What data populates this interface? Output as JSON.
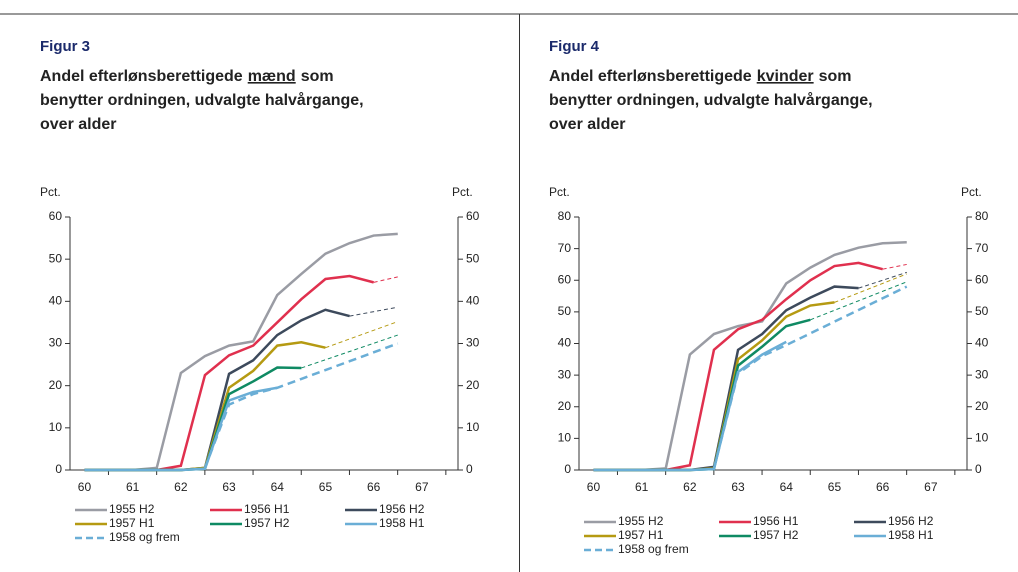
{
  "chart_data": [
    {
      "type": "line",
      "label": "Figur 3",
      "title_lines": [
        [
          "Andel efterlønsberettigede",
          "mænd",
          "som"
        ],
        [
          "benytter ordningen, udvalgte halvårgange,"
        ],
        [
          "over alder"
        ]
      ],
      "title_underline": [
        0,
        1
      ],
      "ylabel": "Pct.",
      "y2label": "Pct.",
      "xlim": [
        59.7,
        67.75
      ],
      "xticks": [
        60,
        61,
        62,
        63,
        64,
        65,
        66,
        67
      ],
      "ylim": [
        0,
        60
      ],
      "yticks": [
        0,
        10,
        20,
        30,
        40,
        50,
        60
      ],
      "y2lim": [
        0,
        60
      ],
      "y2ticks": [
        0,
        10,
        20,
        30,
        40,
        50,
        60
      ],
      "x": [
        60,
        60.5,
        61,
        61.5,
        62,
        62.5,
        63,
        63.5,
        64,
        64.5,
        65,
        65.5,
        66,
        66.5
      ],
      "series": [
        {
          "name": "1955 H2",
          "color": "#9a9ca4",
          "values": [
            0,
            0,
            0,
            0.5,
            23,
            27,
            29.5,
            30.5,
            41.5,
            46.5,
            51.3,
            53.8,
            55.6,
            56
          ]
        },
        {
          "name": "1956 H1",
          "color": "#e0304e",
          "values": [
            0,
            0,
            0,
            0,
            1,
            22.5,
            27.2,
            29.5,
            35,
            40.5,
            45.3,
            46,
            44.5,
            null
          ],
          "dashed_x": [
            66,
            66.5
          ],
          "dashed_values": [
            44.5,
            45.8
          ]
        },
        {
          "name": "1956 H2",
          "color": "#3d4a5c",
          "values": [
            0,
            0,
            0,
            0,
            0,
            0.5,
            22.8,
            26,
            32,
            35.5,
            38,
            36.5,
            null,
            null
          ],
          "dashed_x": [
            65.5,
            66.5
          ],
          "dashed_values": [
            36.5,
            38.6
          ]
        },
        {
          "name": "1957 H1",
          "color": "#b59a12",
          "values": [
            0,
            0,
            0,
            0,
            0,
            0.5,
            19.5,
            23.5,
            29.5,
            30.3,
            29,
            null,
            null,
            null
          ],
          "dashed_x": [
            65,
            66.5
          ],
          "dashed_values": [
            29,
            35.2
          ]
        },
        {
          "name": "1957 H2",
          "color": "#0f8a63",
          "values": [
            0,
            0,
            0,
            0,
            0,
            0.3,
            18,
            21,
            24.3,
            24.2,
            null,
            null,
            null,
            null
          ],
          "dashed_x": [
            64.5,
            66.5
          ],
          "dashed_values": [
            24.2,
            32
          ]
        },
        {
          "name": "1958 H1",
          "color": "#6aaed6",
          "values": [
            0,
            0,
            0,
            0,
            0,
            0.3,
            16.5,
            18.5,
            19.5,
            null,
            null,
            null,
            null,
            null
          ]
        },
        {
          "name": "1958 og frem",
          "color": "#6aaed6",
          "style": "dashed",
          "x": [
            62.5,
            63,
            63.5,
            64,
            64.5,
            65,
            65.5,
            66,
            66.5
          ],
          "values": [
            0.5,
            15.5,
            18,
            19.5,
            21.6,
            23.7,
            25.8,
            27.9,
            30
          ]
        }
      ]
    },
    {
      "type": "line",
      "label": "Figur 4",
      "title_lines": [
        [
          "Andel efterlønsberettigede",
          "kvinder",
          "som"
        ],
        [
          "benytter ordningen, udvalgte halvårgange,"
        ],
        [
          "over alder"
        ]
      ],
      "title_underline": [
        0,
        1
      ],
      "ylabel": "Pct.",
      "y2label": "Pct.",
      "xlim": [
        59.7,
        67.75
      ],
      "xticks": [
        60,
        61,
        62,
        63,
        64,
        65,
        66,
        67
      ],
      "ylim": [
        0,
        80
      ],
      "yticks": [
        0,
        10,
        20,
        30,
        40,
        50,
        60,
        70,
        80
      ],
      "y2lim": [
        0,
        80
      ],
      "y2ticks": [
        0,
        10,
        20,
        30,
        40,
        50,
        60,
        70,
        80
      ],
      "x": [
        60,
        60.5,
        61,
        61.5,
        62,
        62.5,
        63,
        63.5,
        64,
        64.5,
        65,
        65.5,
        66,
        66.5
      ],
      "series": [
        {
          "name": "1955 H2",
          "color": "#9a9ca4",
          "values": [
            0,
            0,
            0,
            0.5,
            36.5,
            43,
            45.5,
            47,
            59,
            64,
            68,
            70.3,
            71.7,
            72
          ]
        },
        {
          "name": "1956 H1",
          "color": "#e0304e",
          "values": [
            0,
            0,
            0,
            0,
            1.5,
            38,
            44.5,
            47.5,
            54,
            60,
            64.5,
            65.5,
            63.5,
            null
          ],
          "dashed_x": [
            66,
            66.5
          ],
          "dashed_values": [
            63.5,
            65
          ]
        },
        {
          "name": "1956 H2",
          "color": "#3d4a5c",
          "values": [
            0,
            0,
            0,
            0,
            0,
            1,
            38,
            43,
            50.5,
            54.5,
            58,
            57.5,
            null,
            null
          ],
          "dashed_x": [
            65.5,
            66.5
          ],
          "dashed_values": [
            57.5,
            62.5
          ]
        },
        {
          "name": "1957 H1",
          "color": "#b59a12",
          "values": [
            0,
            0,
            0,
            0,
            0,
            0.5,
            35,
            41,
            48.5,
            52,
            53,
            null,
            null,
            null
          ],
          "dashed_x": [
            65,
            66.5
          ],
          "dashed_values": [
            53,
            62
          ]
        },
        {
          "name": "1957 H2",
          "color": "#0f8a63",
          "values": [
            0,
            0,
            0,
            0,
            0,
            0.3,
            33,
            39,
            45.5,
            47.5,
            null,
            null,
            null,
            null
          ],
          "dashed_x": [
            64.5,
            66.5
          ],
          "dashed_values": [
            47.5,
            59.5
          ]
        },
        {
          "name": "1958 H1",
          "color": "#6aaed6",
          "values": [
            0,
            0,
            0,
            0,
            0,
            0.3,
            31,
            36.5,
            40.5,
            null,
            null,
            null,
            null,
            null
          ]
        },
        {
          "name": "1958 og frem",
          "color": "#6aaed6",
          "style": "dashed",
          "x": [
            62.5,
            63,
            63.5,
            64,
            64.5,
            65,
            65.5,
            66,
            66.5
          ],
          "values": [
            0.5,
            30.5,
            36,
            39.5,
            43.2,
            46.9,
            50.6,
            54.3,
            58
          ]
        }
      ]
    }
  ]
}
